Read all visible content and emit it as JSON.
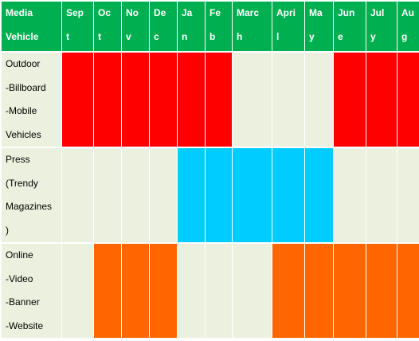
{
  "table": {
    "corner_header": "Media\nVehicle",
    "months": [
      "Sep\nt",
      "Oc\nt",
      "No\nv",
      "De\nc",
      "Ja\nn",
      "Fe\nb",
      "Marc\nh",
      "Apri\nl",
      "Ma\ny",
      "Jun\ne",
      "Jul\ny",
      "Au\ng"
    ],
    "header_color": "#00b050",
    "empty_color": "#ebf1de",
    "rows": [
      {
        "label": "Outdoor\n-Billboard\n-Mobile\nVehicles",
        "color": "#ff0000",
        "active": [
          true,
          true,
          true,
          true,
          true,
          true,
          false,
          false,
          false,
          true,
          true,
          true
        ]
      },
      {
        "label": "Press\n(Trendy\nMagazines\n)",
        "color": "#00ccff",
        "active": [
          false,
          false,
          false,
          false,
          true,
          true,
          true,
          true,
          true,
          false,
          false,
          false
        ]
      },
      {
        "label": "Online\n-Video\n-Banner\n-Website",
        "color": "#ff6600",
        "active": [
          false,
          true,
          true,
          true,
          false,
          false,
          false,
          true,
          true,
          true,
          true,
          true
        ]
      }
    ]
  }
}
